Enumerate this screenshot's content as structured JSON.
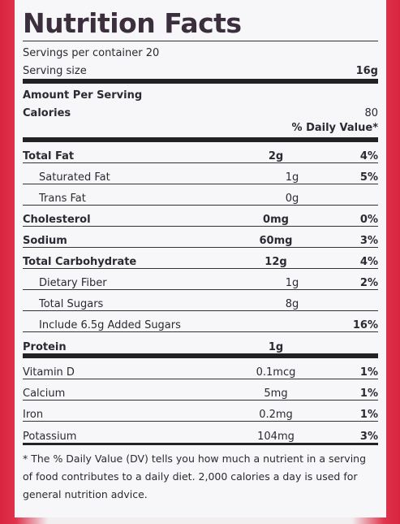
{
  "title": "Nutrition Facts",
  "servings_per_container": "Servings per container 20",
  "serving_size": {
    "label": "Serving size",
    "value": "16g"
  },
  "amount_per_serving": "Amount Per Serving",
  "calories": {
    "label": "Calories",
    "value": "80"
  },
  "dv_header": "% Daily Value*",
  "nutrients": [
    {
      "name": "Total Fat",
      "amount": "2g",
      "dv": "4%"
    },
    {
      "name": "Saturated Fat",
      "amount": "1g",
      "dv": "5%"
    },
    {
      "name": "Trans Fat",
      "amount": "0g",
      "dv": ""
    },
    {
      "name": "Cholesterol",
      "amount": "0mg",
      "dv": "0%"
    },
    {
      "name": "Sodium",
      "amount": "60mg",
      "dv": "3%"
    },
    {
      "name": "Total Carbohydrate",
      "amount": "12g",
      "dv": "4%"
    },
    {
      "name": "Dietary Fiber",
      "amount": "1g",
      "dv": "2%"
    },
    {
      "name": "Total Sugars",
      "amount": "8g",
      "dv": ""
    },
    {
      "name": "Include 6.5g Added Sugars",
      "amount": "",
      "dv": "16%"
    },
    {
      "name": "Protein",
      "amount": "1g",
      "dv": ""
    }
  ],
  "vitamins": [
    {
      "name": "Vitamin D",
      "amount": "0.1mcg",
      "dv": "1%"
    },
    {
      "name": "Calcium",
      "amount": "5mg",
      "dv": "1%"
    },
    {
      "name": "Iron",
      "amount": "0.2mg",
      "dv": "1%"
    },
    {
      "name": "Potassium",
      "amount": "104mg",
      "dv": "3%"
    }
  ],
  "footnote": "* The % Daily Value (DV) tells you how much a nutrient in a serving of food contributes to a daily diet. 2,000 calories a day is used for general nutrition advice."
}
